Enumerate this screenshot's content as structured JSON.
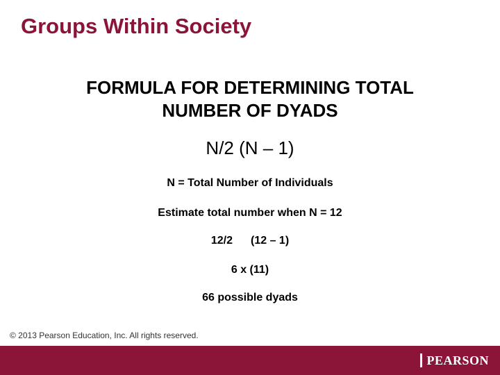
{
  "colors": {
    "title": "#8a1538",
    "text": "#000000",
    "footer_bg": "#8a1538",
    "logo_text": "#ffffff",
    "background": "#ffffff"
  },
  "fonts": {
    "title_size": 31,
    "subtitle_size": 26,
    "formula_size": 26,
    "body_size": 16,
    "copyright_size": 12
  },
  "title": "Groups Within Society",
  "subtitle_line1": "FORMULA FOR DETERMINING TOTAL",
  "subtitle_line2": "NUMBER OF DYADS",
  "formula": "N/2   (N – 1)",
  "n_label": "N = Total Number of Individuals",
  "estimate": "Estimate total number when N = 12",
  "step1_a": "12/2",
  "step1_b": "(12 – 1)",
  "step2": "6   x   (11)",
  "result": "66 possible dyads",
  "copyright": "© 2013  Pearson Education, Inc. All rights reserved.",
  "logo": "PEARSON"
}
